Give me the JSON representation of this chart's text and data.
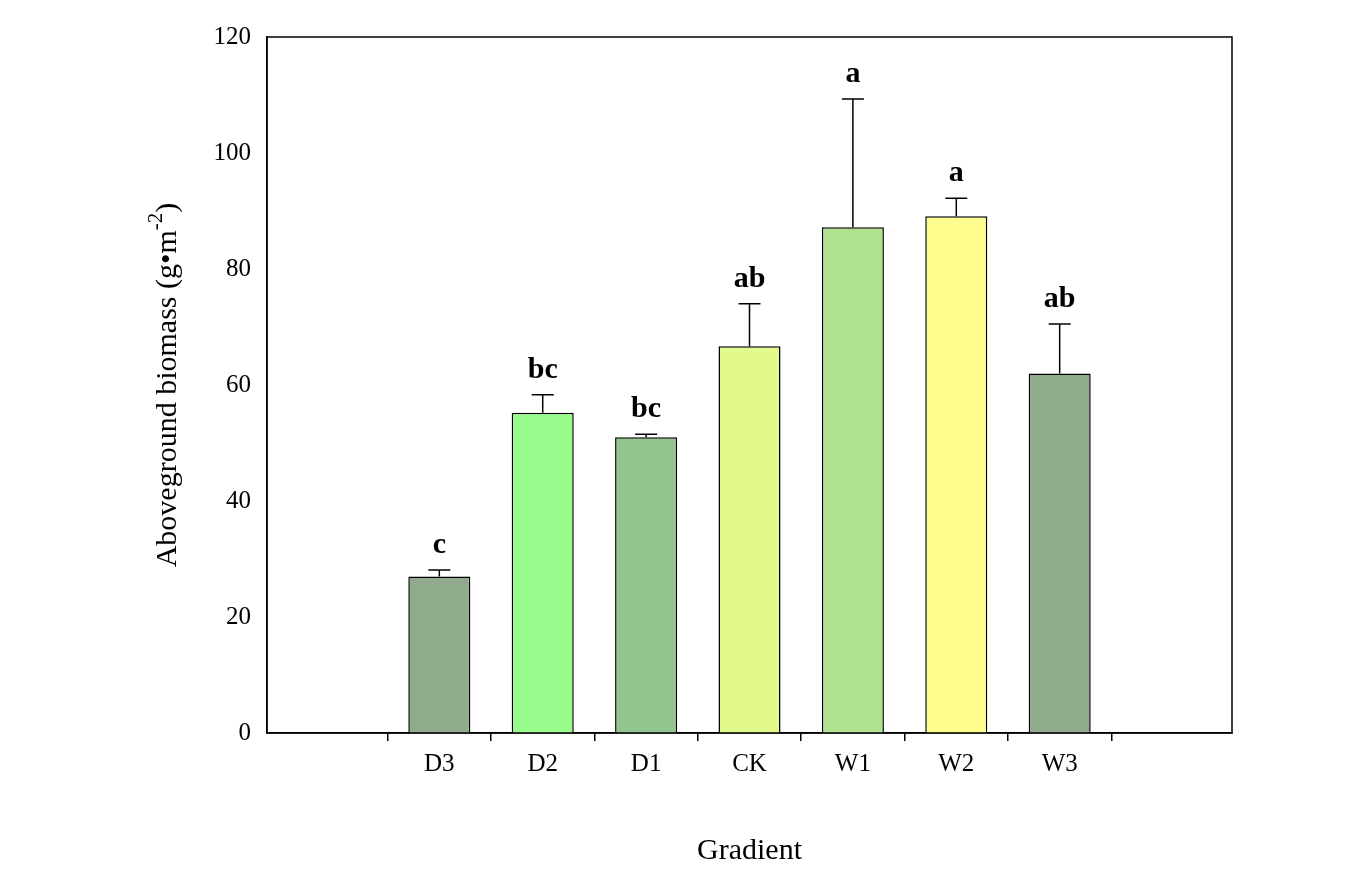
{
  "chart_data": {
    "type": "bar",
    "xlabel": "Gradient",
    "ylabel": "Aboveground biomass (g•m$^{-2}$)",
    "categories": [
      "D3",
      "D2",
      "D1",
      "CK",
      "W1",
      "W2",
      "W3"
    ],
    "values": [
      27.0,
      55.2,
      51.0,
      66.7,
      87.2,
      89.1,
      62.0
    ],
    "errors": [
      [
        27.0,
        28.1
      ],
      [
        55.2,
        58.3
      ],
      [
        51.0,
        51.5
      ],
      [
        66.7,
        74.0
      ],
      [
        87.2,
        109.3
      ],
      [
        89.1,
        92.2
      ],
      [
        62.0,
        70.5
      ]
    ],
    "colors": [
      "#90aa8c",
      "#98fb8c",
      "#93c58f",
      "#e2fa8c",
      "#aee28f",
      "#fdfc8c",
      "#90aa8c"
    ],
    "ylim": [
      0,
      120
    ],
    "yticks": [
      0,
      20,
      40,
      60,
      80,
      100,
      120
    ],
    "grid": false,
    "legend": false,
    "annotations": [
      "c",
      "bc",
      "bc",
      "ab",
      "a",
      "a",
      "ab"
    ]
  }
}
